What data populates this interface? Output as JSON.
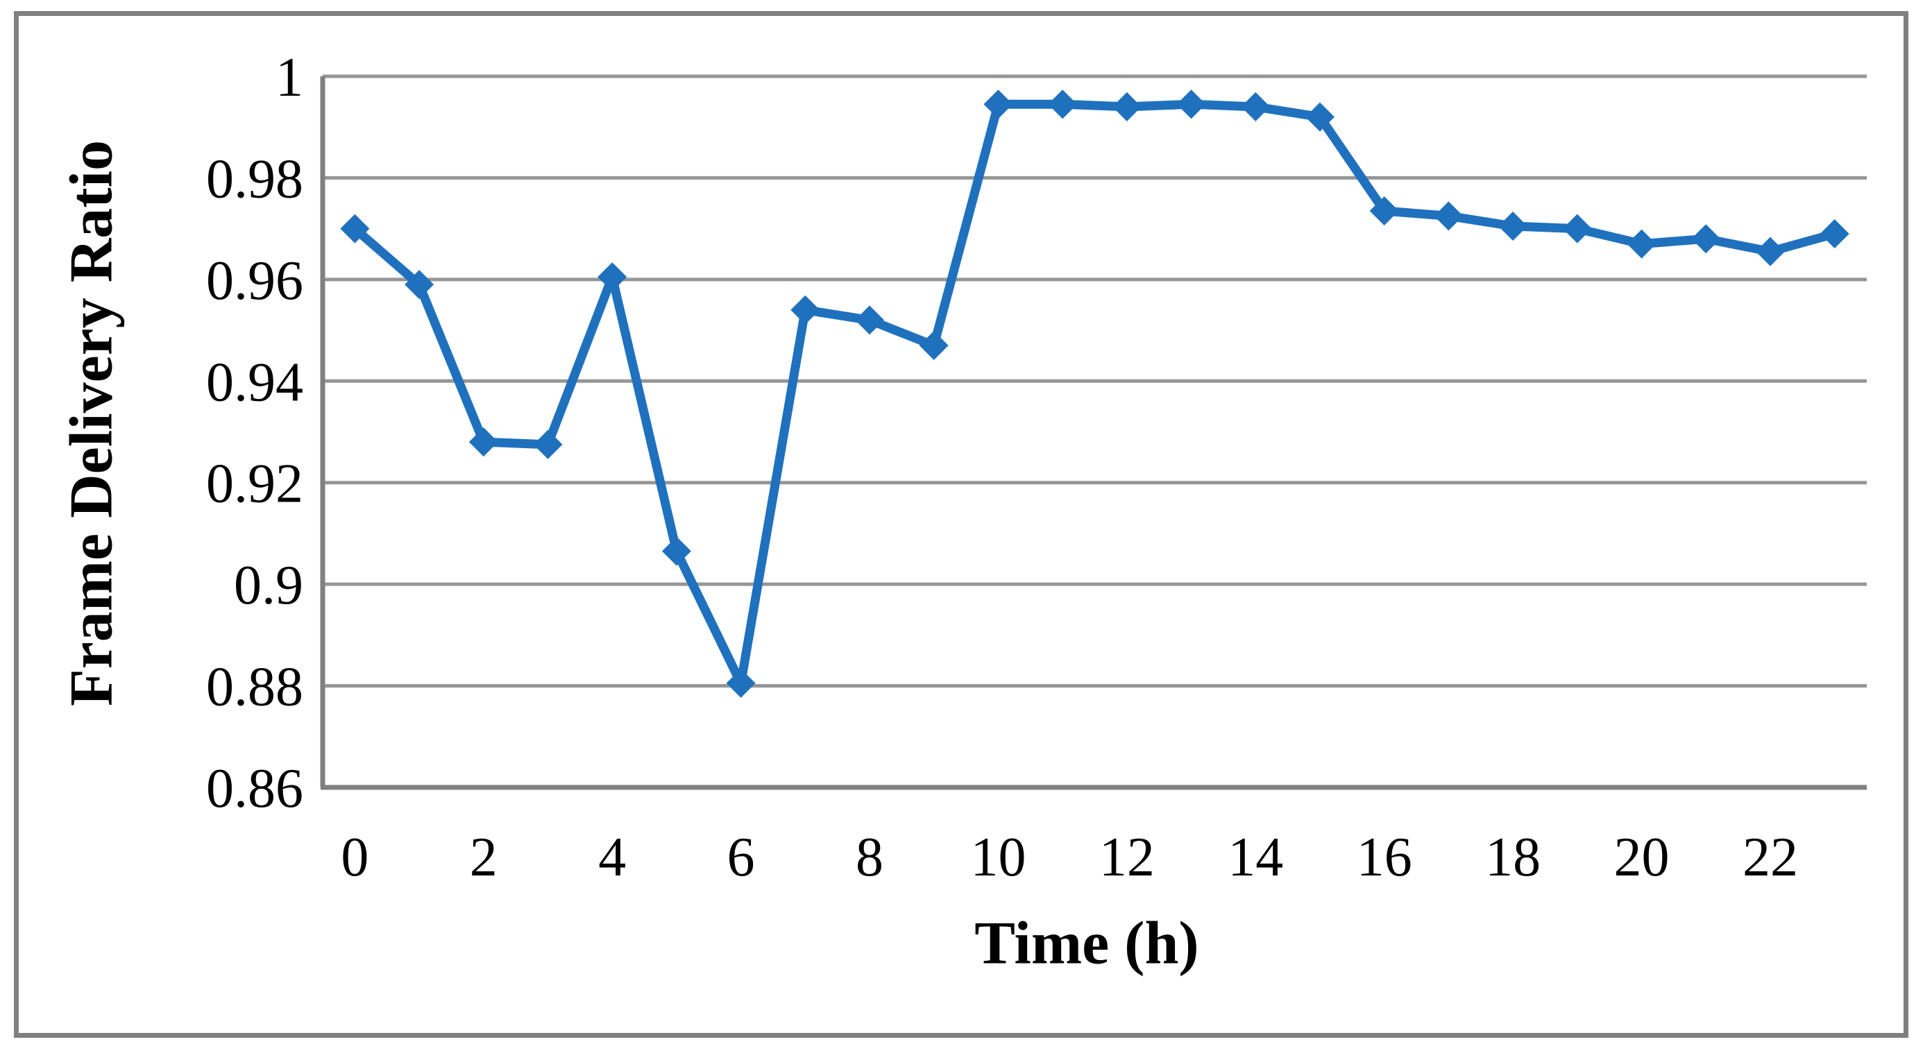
{
  "figure": {
    "background_color": "#ffffff",
    "border_color": "#808080",
    "gridline_color": "#969696",
    "axis_line_color": "#808080"
  },
  "chart_data": {
    "type": "line",
    "title": "",
    "xlabel": "Time (h)",
    "ylabel": "Frame Delivery Ratio",
    "series_name": "Frame Delivery Ratio",
    "series_color": "#1F71BE",
    "marker": "diamond",
    "grid": "horizontal",
    "legend": "none",
    "x": [
      0,
      1,
      2,
      3,
      4,
      5,
      6,
      7,
      8,
      9,
      10,
      11,
      12,
      13,
      14,
      15,
      16,
      17,
      18,
      19,
      20,
      21,
      22,
      23
    ],
    "values": [
      0.97,
      0.959,
      0.928,
      0.9275,
      0.9605,
      0.9065,
      0.8805,
      0.954,
      0.952,
      0.947,
      0.9945,
      0.9945,
      0.994,
      0.9945,
      0.994,
      0.992,
      0.9735,
      0.9725,
      0.9705,
      0.97,
      0.967,
      0.968,
      0.9655,
      0.969
    ],
    "ylim": [
      0.86,
      1.0
    ],
    "ytick_step": 0.02,
    "ytick_labels": [
      "0.86",
      "0.88",
      "0.9",
      "0.92",
      "0.94",
      "0.96",
      "0.98",
      "1"
    ],
    "xtick_labels": [
      "0",
      "2",
      "4",
      "6",
      "8",
      "10",
      "12",
      "14",
      "16",
      "18",
      "20",
      "22"
    ]
  }
}
